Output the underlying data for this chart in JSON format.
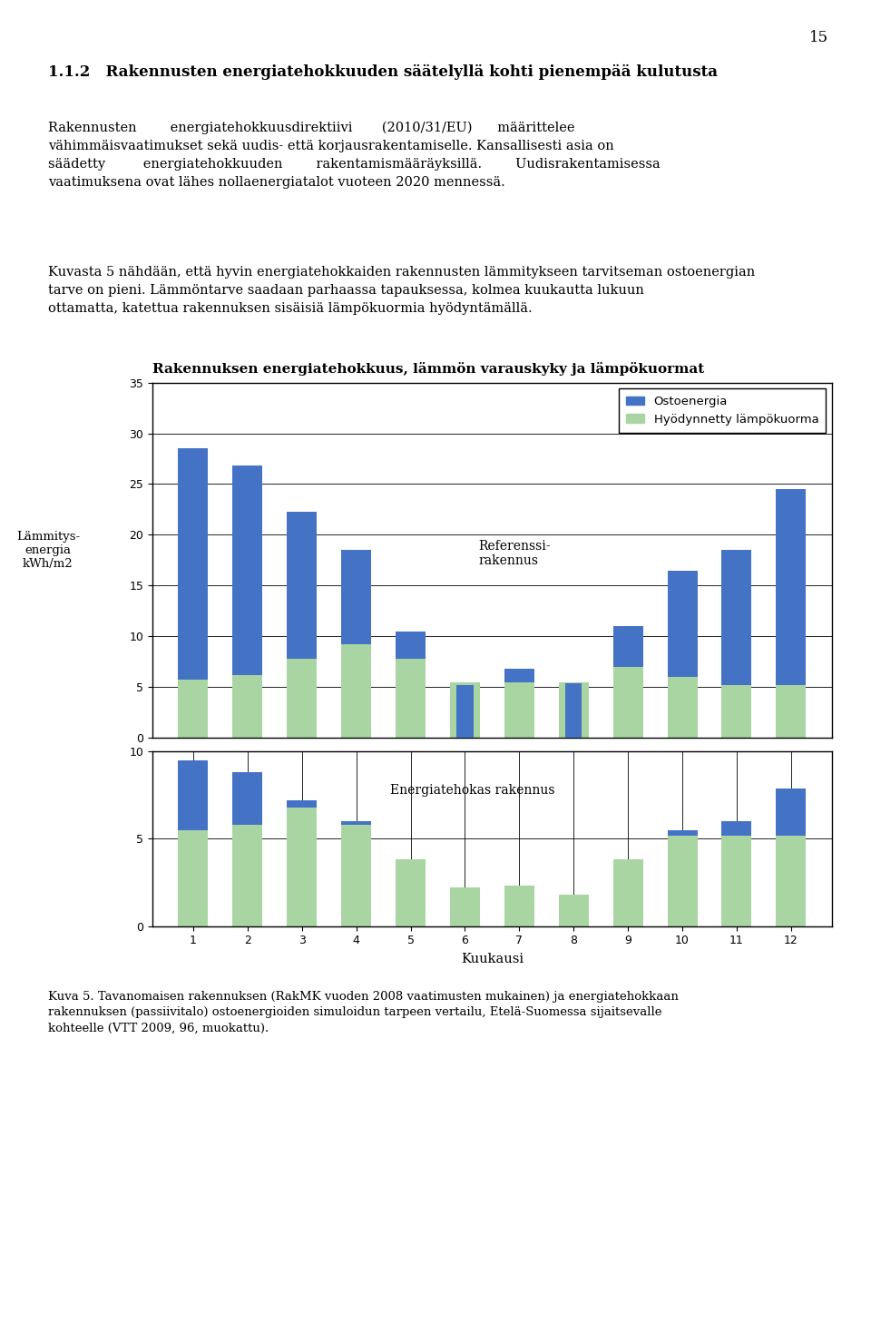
{
  "title": "Rakennuksen energiatehokkuus, lämmön varauskyky ja lämpökuormat",
  "ylabel_line1": "Lämmitys-",
  "ylabel_line2": "energia",
  "ylabel_line3": "kWh/m2",
  "xlabel": "Kuukausi",
  "legend_labels": [
    "Ostoenergia",
    "Hyödynnetty lämpökuorma"
  ],
  "blue_color": "#4472C4",
  "green_color": "#A8D5A2",
  "bg_color": "#FFFFFF",
  "months": [
    1,
    2,
    3,
    4,
    5,
    6,
    7,
    8,
    9,
    10,
    11,
    12
  ],
  "ref_ostoenergia": [
    28.5,
    26.8,
    22.3,
    18.5,
    10.5,
    5.2,
    6.8,
    5.4,
    11.0,
    16.5,
    18.5,
    24.5
  ],
  "ref_lampokuorma": [
    5.8,
    6.2,
    7.8,
    9.2,
    7.8,
    5.5,
    5.5,
    5.5,
    7.0,
    6.0,
    5.2,
    5.2
  ],
  "eff_ostoenergia": [
    9.5,
    8.8,
    7.2,
    6.0,
    0.0,
    0.0,
    0.0,
    0.0,
    0.0,
    5.5,
    6.0,
    7.9
  ],
  "eff_lampokuorma": [
    5.5,
    5.8,
    6.8,
    5.8,
    3.8,
    2.2,
    2.3,
    1.8,
    3.8,
    5.2,
    5.2,
    5.2
  ],
  "ref_ylim": [
    0,
    35
  ],
  "ref_yticks": [
    0,
    5,
    10,
    15,
    20,
    25,
    30,
    35
  ],
  "eff_ylim": [
    0,
    10
  ],
  "eff_yticks": [
    0,
    5,
    10
  ],
  "ref_label": "Referenssi-\nrakennus",
  "eff_label": "Energiatehokas rakennus",
  "page_number": "15",
  "bar_width": 0.55
}
